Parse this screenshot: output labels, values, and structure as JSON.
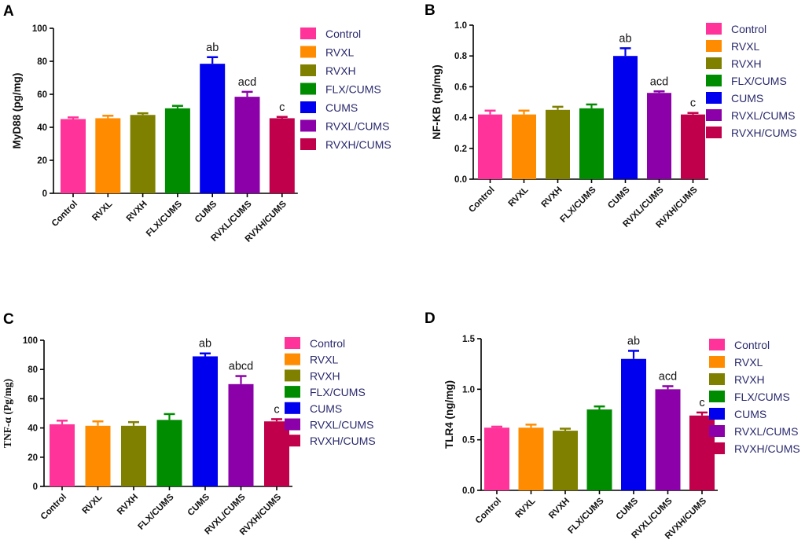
{
  "chart_data": [
    {
      "panel": "A",
      "type": "bar",
      "ylabel": "MyD88 (pg/mg)",
      "ylim": [
        0,
        100
      ],
      "yticks": [
        "0",
        "20",
        "40",
        "60",
        "80",
        "100"
      ],
      "categories": [
        "Control",
        "RVXL",
        "RVXH",
        "FLX/CUMS",
        "CUMS",
        "RVXL/CUMS",
        "RVXH/CUMS"
      ],
      "values": [
        45,
        45.5,
        47.5,
        51.5,
        78.5,
        58.5,
        45.5
      ],
      "errors": [
        1.0,
        1.5,
        1.0,
        1.5,
        4.0,
        3.0,
        0.8
      ],
      "annotations": [
        "",
        "",
        "",
        "",
        "ab",
        "acd",
        "c"
      ],
      "legend": [
        "Control",
        "RVXL",
        "RVXH",
        "FLX/CUMS",
        "CUMS",
        "RVXL/CUMS",
        "RVXH/CUMS"
      ]
    },
    {
      "panel": "B",
      "type": "bar",
      "ylabel": "NF-KB (ng/mg)",
      "ylim": [
        0,
        1.0
      ],
      "yticks": [
        "0.0",
        "0.2",
        "0.4",
        "0.6",
        "0.8",
        "1.0"
      ],
      "categories": [
        "Control",
        "RVXL",
        "RVXH",
        "FLX/CUMS",
        "CUMS",
        "RVXL/CUMS",
        "RVXH/CUMS"
      ],
      "values": [
        0.42,
        0.42,
        0.45,
        0.46,
        0.8,
        0.56,
        0.42
      ],
      "errors": [
        0.025,
        0.025,
        0.02,
        0.025,
        0.05,
        0.01,
        0.01
      ],
      "annotations": [
        "",
        "",
        "",
        "",
        "ab",
        "acd",
        "c"
      ],
      "legend": [
        "Control",
        "RVXL",
        "RVXH",
        "FLX/CUMS",
        "CUMS",
        "RVXL/CUMS",
        "RVXH/CUMS"
      ]
    },
    {
      "panel": "C",
      "type": "bar",
      "ylabel": "TNF-α (Pg/mg)",
      "ylim": [
        0,
        100
      ],
      "yticks": [
        "0",
        "20",
        "40",
        "60",
        "80",
        "100"
      ],
      "categories": [
        "Control",
        "RVXL",
        "RVXH",
        "FLX/CUMS",
        "CUMS",
        "RVXL/CUMS",
        "RVXH/CUMS"
      ],
      "values": [
        42.5,
        41.5,
        41.5,
        45.5,
        89,
        70,
        44.5
      ],
      "errors": [
        2.5,
        3.0,
        2.5,
        4.0,
        2.0,
        5.5,
        1.5
      ],
      "annotations": [
        "",
        "",
        "",
        "",
        "ab",
        "abcd",
        "c"
      ],
      "legend": [
        "Control",
        "RVXL",
        "RVXH",
        "FLX/CUMS",
        "CUMS",
        "RVXL/CUMS",
        "RVXH/CUMS"
      ]
    },
    {
      "panel": "D",
      "type": "bar",
      "ylabel": "TLR4 (ng/mg)",
      "ylim": [
        0,
        1.5
      ],
      "yticks": [
        "0.0",
        "0.5",
        "1.0",
        "1.5"
      ],
      "categories": [
        "Control",
        "RVXL",
        "RVXH",
        "FLX/CUMS",
        "CUMS",
        "RVXL/CUMS",
        "RVXH/CUMS"
      ],
      "values": [
        0.62,
        0.62,
        0.59,
        0.8,
        1.3,
        1.0,
        0.74
      ],
      "errors": [
        0.01,
        0.03,
        0.02,
        0.03,
        0.08,
        0.03,
        0.03
      ],
      "annotations": [
        "",
        "",
        "",
        "",
        "ab",
        "acd",
        "c"
      ],
      "legend": [
        "Control",
        "RVXL",
        "RVXH",
        "FLX/CUMS",
        "CUMS",
        "RVXL/CUMS",
        "RVXH/CUMS"
      ]
    }
  ],
  "colors": [
    "#ff3399",
    "#ff8c00",
    "#808000",
    "#008c00",
    "#0000ee",
    "#8b00a8",
    "#c0004a"
  ]
}
